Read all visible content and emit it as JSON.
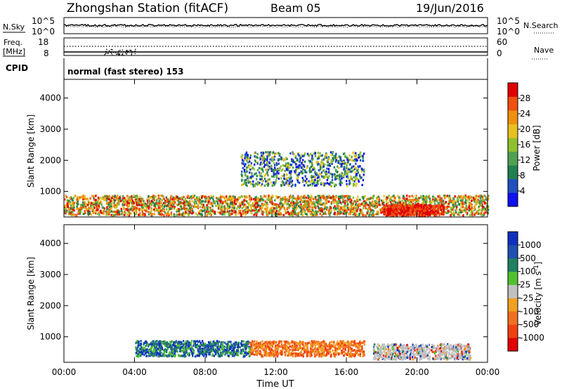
{
  "header": {
    "station": "Zhongshan Station (fitACF)",
    "beam": "Beam 05",
    "date": "19/Jun/2016"
  },
  "noise_panel": {
    "left_label": "N.Sky",
    "left_ticks": [
      "10^5",
      "10^0"
    ],
    "right_label": "N.Search",
    "right_ticks": [
      "10^5",
      "10^0"
    ]
  },
  "freq_panel": {
    "left_label_1": "Freq.",
    "left_label_2": "[MHz]",
    "left_ticks": [
      "18",
      "8"
    ],
    "right_label": "Nave",
    "right_ticks": [
      "60",
      "0"
    ]
  },
  "cpid": {
    "label": "CPID",
    "value": "normal (fast stereo) 153"
  },
  "chart_data": [
    {
      "type": "heatmap",
      "name": "power",
      "x_ticks": [
        "00:00",
        "04:00",
        "08:00",
        "12:00",
        "16:00",
        "20:00",
        "00:00"
      ],
      "xlim": [
        0,
        24
      ],
      "ylabel": "Slant Range [km]",
      "y_ticks": [
        "1000",
        "2000",
        "3000",
        "4000"
      ],
      "ylim": [
        180,
        4600
      ],
      "colorbar": {
        "label": "Power [dB]",
        "ticks": [
          "4",
          "8",
          "12",
          "16",
          "20",
          "24",
          "28"
        ],
        "range": [
          0,
          30
        ],
        "colors": [
          "#1010f0",
          "#2050c0",
          "#208050",
          "#50a050",
          "#90c030",
          "#e8c020",
          "#f09010",
          "#f05010",
          "#e00000"
        ]
      },
      "echo_regions": [
        {
          "t0": 0.0,
          "t1": 24.0,
          "r0": 260,
          "r1": 900,
          "level": "strong"
        },
        {
          "t0": 10.0,
          "t1": 17.0,
          "r0": 1200,
          "r1": 2300,
          "level": "patchy"
        },
        {
          "t0": 18.0,
          "t1": 21.5,
          "r0": 250,
          "r1": 600,
          "level": "peak"
        }
      ]
    },
    {
      "type": "heatmap",
      "name": "velocity",
      "x_ticks": [
        "00:00",
        "04:00",
        "08:00",
        "12:00",
        "16:00",
        "20:00",
        "00:00"
      ],
      "xlim": [
        0,
        24
      ],
      "xlabel": "Time UT",
      "ylabel": "Slant Range [km]",
      "y_ticks": [
        "1000",
        "2000",
        "3000",
        "4000"
      ],
      "ylim": [
        180,
        4600
      ],
      "colorbar": {
        "label": "Velocity [m s^-1]",
        "ticks": [
          "1000",
          "500",
          "100",
          "25",
          "-25",
          "-100",
          "-500",
          "-1000"
        ],
        "range": [
          -1200,
          1200
        ],
        "colors": [
          "#e00000",
          "#f04010",
          "#f07020",
          "#f0a020",
          "#c0c0c0",
          "#50c030",
          "#208060",
          "#2050b0",
          "#1030c0"
        ]
      },
      "echo_regions": [
        {
          "t0": 4.0,
          "t1": 10.5,
          "r0": 400,
          "r1": 900,
          "velocity": "positive"
        },
        {
          "t0": 10.5,
          "t1": 17.0,
          "r0": 400,
          "r1": 900,
          "velocity": "negative"
        },
        {
          "t0": 17.5,
          "t1": 23.0,
          "r0": 300,
          "r1": 800,
          "velocity": "ground-scatter"
        }
      ]
    }
  ]
}
